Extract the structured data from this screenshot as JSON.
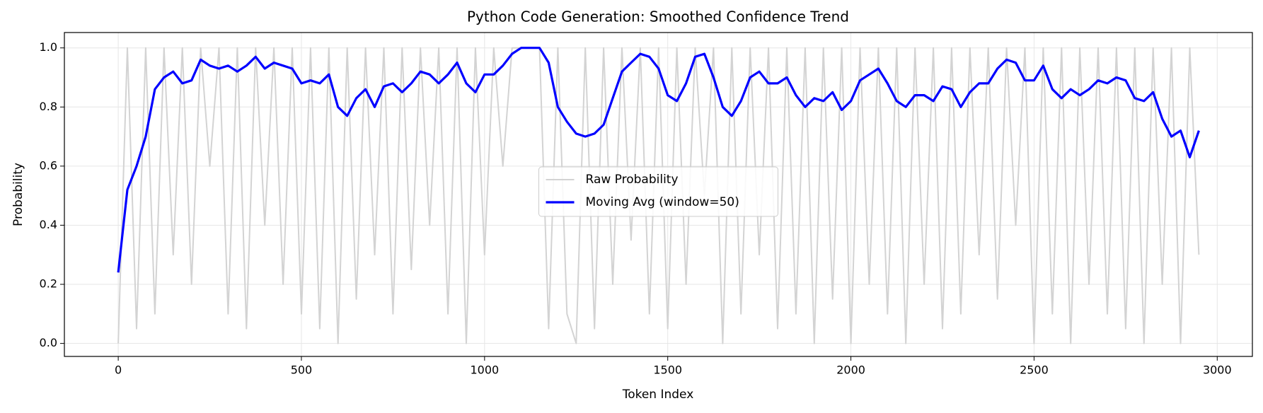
{
  "chart_data": {
    "type": "line",
    "title": "Python Code Generation: Smoothed Confidence Trend",
    "xlabel": "Token Index",
    "ylabel": "Probability",
    "x": [
      0,
      25,
      50,
      75,
      100,
      125,
      150,
      175,
      200,
      225,
      250,
      275,
      300,
      325,
      350,
      375,
      400,
      425,
      450,
      475,
      500,
      525,
      550,
      575,
      600,
      625,
      650,
      675,
      700,
      725,
      750,
      775,
      800,
      825,
      850,
      875,
      900,
      925,
      950,
      975,
      1000,
      1025,
      1050,
      1075,
      1100,
      1125,
      1150,
      1175,
      1200,
      1225,
      1250,
      1275,
      1300,
      1325,
      1350,
      1375,
      1400,
      1425,
      1450,
      1475,
      1500,
      1525,
      1550,
      1575,
      1600,
      1625,
      1650,
      1675,
      1700,
      1725,
      1750,
      1775,
      1800,
      1825,
      1850,
      1875,
      1900,
      1925,
      1950,
      1975,
      2000,
      2025,
      2050,
      2075,
      2100,
      2125,
      2150,
      2175,
      2200,
      2225,
      2250,
      2275,
      2300,
      2325,
      2350,
      2375,
      2400,
      2425,
      2450,
      2475,
      2500,
      2525,
      2550,
      2575,
      2600,
      2625,
      2650,
      2675,
      2700,
      2725,
      2750,
      2775,
      2800,
      2825,
      2850,
      2875,
      2900,
      2925,
      2950
    ],
    "series": [
      {
        "name": "Raw Probability",
        "color": "#d3d3d3",
        "width": 2,
        "values": [
          0.0,
          1.0,
          0.05,
          1.0,
          0.1,
          1.0,
          0.3,
          1.0,
          0.2,
          1.0,
          0.6,
          1.0,
          0.1,
          1.0,
          0.05,
          1.0,
          0.4,
          1.0,
          0.2,
          1.0,
          0.1,
          1.0,
          0.05,
          1.0,
          0.0,
          1.0,
          0.15,
          1.0,
          0.3,
          1.0,
          0.1,
          1.0,
          0.25,
          1.0,
          0.4,
          1.0,
          0.1,
          1.0,
          0.0,
          1.0,
          0.3,
          1.0,
          0.6,
          1.0,
          1.0,
          1.0,
          1.0,
          0.05,
          1.0,
          0.1,
          0.0,
          1.0,
          0.05,
          1.0,
          0.2,
          1.0,
          0.35,
          1.0,
          0.1,
          1.0,
          0.05,
          1.0,
          0.2,
          1.0,
          0.5,
          1.0,
          0.0,
          1.0,
          0.1,
          1.0,
          0.3,
          1.0,
          0.05,
          1.0,
          0.1,
          1.0,
          0.0,
          1.0,
          0.15,
          1.0,
          0.0,
          1.0,
          0.2,
          1.0,
          0.1,
          1.0,
          0.0,
          1.0,
          0.2,
          1.0,
          0.05,
          1.0,
          0.1,
          1.0,
          0.3,
          1.0,
          0.15,
          1.0,
          0.4,
          1.0,
          0.0,
          1.0,
          0.1,
          1.0,
          0.0,
          1.0,
          0.2,
          1.0,
          0.1,
          1.0,
          0.05,
          1.0,
          0.0,
          1.0,
          0.2,
          1.0,
          0.0,
          1.0,
          0.3
        ]
      },
      {
        "name": "Moving Avg (window=50)",
        "color": "#0000ff",
        "width": 3.2,
        "values": [
          0.24,
          0.52,
          0.6,
          0.7,
          0.86,
          0.9,
          0.92,
          0.88,
          0.89,
          0.96,
          0.94,
          0.93,
          0.94,
          0.92,
          0.94,
          0.97,
          0.93,
          0.95,
          0.94,
          0.93,
          0.88,
          0.89,
          0.88,
          0.91,
          0.8,
          0.77,
          0.83,
          0.86,
          0.8,
          0.87,
          0.88,
          0.85,
          0.88,
          0.92,
          0.91,
          0.88,
          0.91,
          0.95,
          0.88,
          0.85,
          0.91,
          0.91,
          0.94,
          0.98,
          1.0,
          1.0,
          1.0,
          0.95,
          0.8,
          0.75,
          0.71,
          0.7,
          0.71,
          0.74,
          0.83,
          0.92,
          0.95,
          0.98,
          0.97,
          0.93,
          0.84,
          0.82,
          0.88,
          0.97,
          0.98,
          0.9,
          0.8,
          0.77,
          0.82,
          0.9,
          0.92,
          0.88,
          0.88,
          0.9,
          0.84,
          0.8,
          0.83,
          0.82,
          0.85,
          0.79,
          0.82,
          0.89,
          0.91,
          0.93,
          0.88,
          0.82,
          0.8,
          0.84,
          0.84,
          0.82,
          0.87,
          0.86,
          0.8,
          0.85,
          0.88,
          0.88,
          0.93,
          0.96,
          0.95,
          0.89,
          0.89,
          0.94,
          0.86,
          0.83,
          0.86,
          0.84,
          0.86,
          0.89,
          0.88,
          0.9,
          0.89,
          0.83,
          0.82,
          0.85,
          0.76,
          0.7,
          0.72,
          0.63,
          0.72
        ]
      }
    ],
    "xlim": [
      -147,
      3096
    ],
    "ylim": [
      -0.044,
      1.052
    ],
    "xticks": [
      0,
      500,
      1000,
      1500,
      2000,
      2500,
      3000
    ],
    "yticks": [
      {
        "value": 0,
        "label": "0.0"
      },
      {
        "value": 0.2,
        "label": "0.2"
      },
      {
        "value": 0.4,
        "label": "0.4"
      },
      {
        "value": 0.6,
        "label": "0.6"
      },
      {
        "value": 0.8,
        "label": "0.8"
      },
      {
        "value": 1,
        "label": "1.0"
      }
    ],
    "grid": true,
    "legend": "center"
  }
}
